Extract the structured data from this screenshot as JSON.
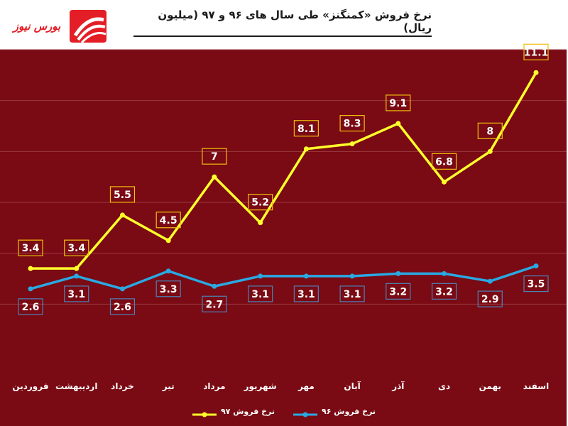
{
  "brand": {
    "logo_text": "بورس نیوز"
  },
  "colors": {
    "background": "#7a0a13",
    "series_97": "#ffff2b",
    "series_96": "#29a9e3",
    "label_box_97": "#f0bf0f",
    "label_box_96": "#4b83b8"
  },
  "chart_data": {
    "type": "line",
    "title": "نرخ فروش «کمنگنز» طی سال های ۹۶ و ۹۷ (میلیون ریال)",
    "categories": [
      "فروردین",
      "اردیبهشت",
      "خرداد",
      "تیر",
      "مرداد",
      "شهریور",
      "مهر",
      "آبان",
      "آذر",
      "دی",
      "بهمن",
      "اسفند"
    ],
    "series": [
      {
        "name": "نرخ فروش ۹۶",
        "values": [
          2.6,
          3.1,
          2.6,
          3.3,
          2.7,
          3.1,
          3.1,
          3.1,
          3.2,
          3.2,
          2.9,
          3.5
        ],
        "value_labels": [
          "2.6",
          "3.1",
          "2.6",
          "3.3",
          "2.7",
          "3.1",
          "3.1",
          "3.1",
          "3.2",
          "3.2",
          "2.9",
          "3.5"
        ],
        "color": "#29a9e3"
      },
      {
        "name": "نرخ فروش ۹۷",
        "values": [
          3.4,
          3.4,
          5.5,
          4.5,
          7,
          5.2,
          8.1,
          8.3,
          9.1,
          6.8,
          8,
          11.1
        ],
        "value_labels": [
          "3.4",
          "3.4",
          "5.5",
          "4.5",
          "7",
          "5.2",
          "8.1",
          "8.3",
          "9.1",
          "6.8",
          "8",
          "11.1"
        ],
        "color": "#ffff2b"
      }
    ],
    "ylim": [
      0,
      12
    ],
    "grid": true,
    "legend_position": "bottom"
  }
}
